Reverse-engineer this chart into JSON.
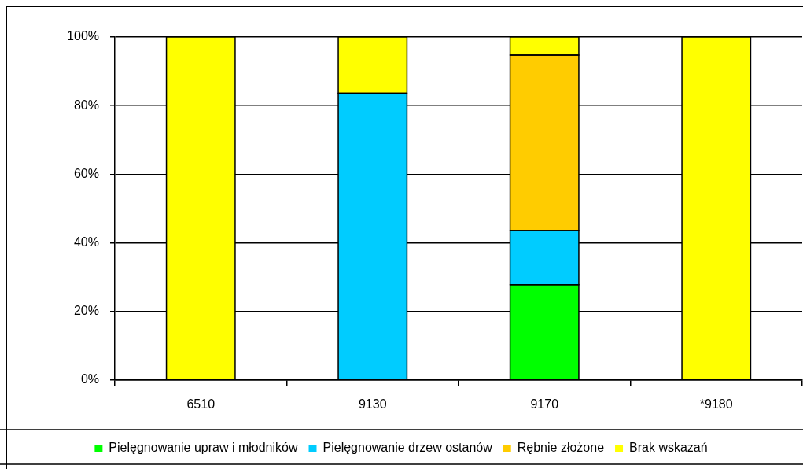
{
  "chart_data": {
    "type": "bar",
    "stacked": true,
    "categories": [
      "6510",
      "9130",
      "9170",
      "*9180"
    ],
    "series": [
      {
        "name": "Pielęgnowanie upraw i młodników",
        "color": "#00ff00",
        "values": [
          0,
          0,
          27.8,
          0
        ]
      },
      {
        "name": "Pielęgnowanie drzew ostanów",
        "color": "#00ccff",
        "values": [
          0,
          83.6,
          15.8,
          0
        ]
      },
      {
        "name": "Rębnie złożone",
        "color": "#ffcc00",
        "values": [
          0,
          0,
          51.1,
          0
        ]
      },
      {
        "name": "Brak wskazań",
        "color": "#ffff00",
        "values": [
          100,
          16.4,
          5.3,
          100
        ]
      }
    ],
    "ylim": [
      0,
      100
    ],
    "yticks": [
      {
        "value": 0,
        "label": "0%"
      },
      {
        "value": 20,
        "label": "20%"
      },
      {
        "value": 40,
        "label": "40%"
      },
      {
        "value": 60,
        "label": "60%"
      },
      {
        "value": 80,
        "label": "80%"
      },
      {
        "value": 100,
        "label": "100%"
      }
    ],
    "grid": "y",
    "legend": "bottom"
  }
}
